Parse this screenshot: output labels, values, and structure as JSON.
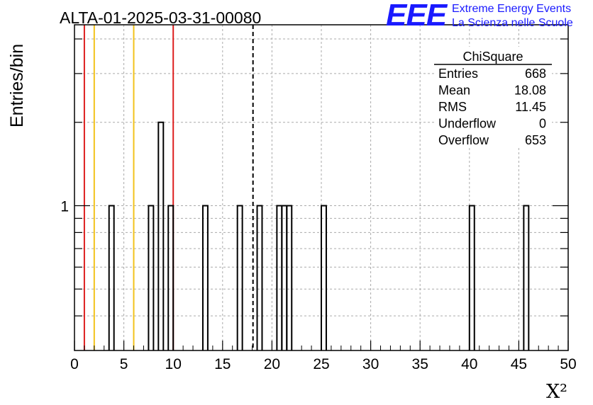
{
  "chart_data": {
    "type": "bar",
    "title": "ALTA-01-2025-03-31-00080",
    "xlabel": "X²",
    "ylabel": "Entries/bin",
    "xlim": [
      0,
      50
    ],
    "ylim_log": [
      0.3,
      4.5
    ],
    "log_y": true,
    "grid": true,
    "x_ticks": [
      0,
      5,
      10,
      15,
      20,
      25,
      30,
      35,
      40,
      45,
      50
    ],
    "y_tick_labels": [
      {
        "value": 1,
        "label": "1"
      }
    ],
    "bin_width": 0.5,
    "bins": [
      {
        "x": 3.5,
        "count": 1
      },
      {
        "x": 7.5,
        "count": 1
      },
      {
        "x": 8.5,
        "count": 2
      },
      {
        "x": 9.5,
        "count": 1
      },
      {
        "x": 13.0,
        "count": 1
      },
      {
        "x": 16.5,
        "count": 1
      },
      {
        "x": 18.5,
        "count": 1
      },
      {
        "x": 20.5,
        "count": 1
      },
      {
        "x": 21.0,
        "count": 1
      },
      {
        "x": 21.5,
        "count": 1
      },
      {
        "x": 25.0,
        "count": 1
      },
      {
        "x": 40.0,
        "count": 1
      },
      {
        "x": 45.5,
        "count": 1
      }
    ],
    "vertical_lines": [
      {
        "x": 1,
        "color": "#dd1f1f",
        "style": "solid"
      },
      {
        "x": 2,
        "color": "#f2c21b",
        "style": "solid"
      },
      {
        "x": 6,
        "color": "#f2c21b",
        "style": "solid"
      },
      {
        "x": 10,
        "color": "#dd1f1f",
        "style": "solid"
      },
      {
        "x": 18.08,
        "color": "#000000",
        "style": "dashed"
      }
    ],
    "stats": {
      "title": "ChiSquare",
      "rows": [
        {
          "label": "Entries",
          "value": "668"
        },
        {
          "label": "Mean",
          "value": "18.08"
        },
        {
          "label": "RMS",
          "value": "11.45"
        },
        {
          "label": "Underflow",
          "value": "0"
        },
        {
          "label": "Overflow",
          "value": "653"
        }
      ],
      "position": "top-right"
    }
  },
  "logo": {
    "mark": "EEE",
    "line1": "Extreme Energy Events",
    "line2": "La Scienza nelle Scuole"
  }
}
